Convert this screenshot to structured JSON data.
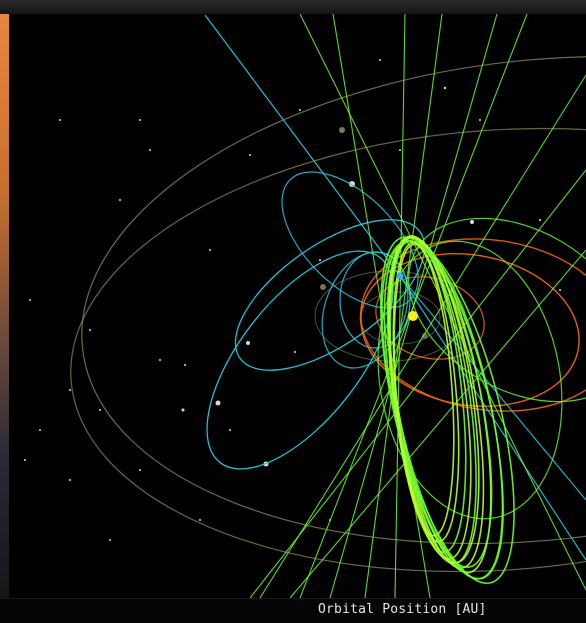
{
  "view": {
    "axis_label": "Orbital Position [AU]"
  },
  "colors": {
    "background": "#000000",
    "planet_orbit": "#8a8a4a",
    "comet_orbit_cyan": "#27c8e0",
    "comet_orbit_green": "#6bff2e",
    "comet_orbit_lime": "#b8ff30",
    "comet_orbit_orange": "#ff6a10",
    "sun": "#ffee20",
    "stars": "#ffffff"
  }
}
